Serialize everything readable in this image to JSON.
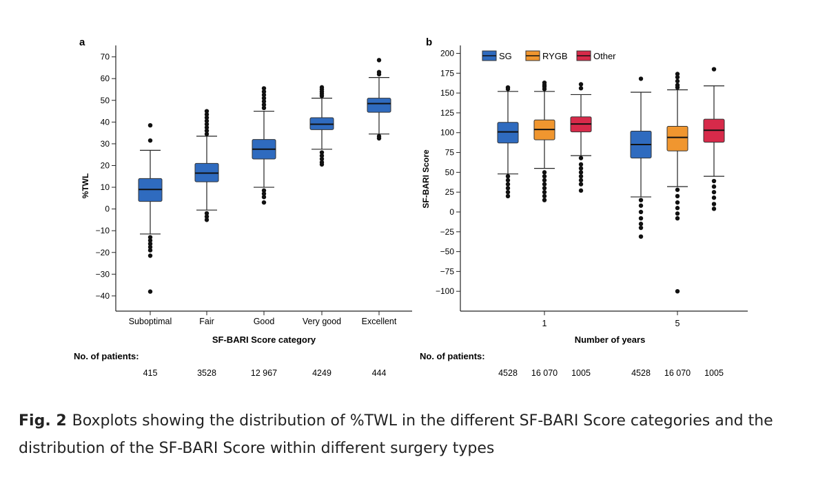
{
  "caption": {
    "label": "Fig. 2",
    "text": "Boxplots showing the distribution of %TWL in the different SF-BARI Score categories and the distribution of the SF-BARI Score within different surgery types"
  },
  "chart_data": [
    {
      "panel": "a",
      "type": "boxplot",
      "xlabel": "SF-BARI Score category",
      "ylabel": "%TWL",
      "ylim": [
        -47,
        74
      ],
      "yticks": [
        70,
        60,
        50,
        40,
        30,
        20,
        10,
        0,
        -10,
        -20,
        -30,
        -40
      ],
      "grid": false,
      "categories": [
        "Suboptimal",
        "Fair",
        "Good",
        "Very good",
        "Excellent"
      ],
      "patients_label": "No. of patients:",
      "patients": [
        "415",
        "3528",
        "12 967",
        "4249",
        "444"
      ],
      "color": "#2f6bbf",
      "boxes": [
        {
          "category": "Suboptimal",
          "whisker_low": -11.5,
          "q1": 3.5,
          "median": 9,
          "q3": 14,
          "whisker_high": 27,
          "outliers": [
            38.5,
            31.5,
            -13,
            -14.5,
            -16,
            -17.5,
            -19,
            -21.5,
            -38
          ]
        },
        {
          "category": "Fair",
          "whisker_low": -0.5,
          "q1": 12.5,
          "median": 16.5,
          "q3": 21,
          "whisker_high": 33.5,
          "outliers": [
            34.5,
            36,
            37.5,
            39,
            40.5,
            42,
            43.5,
            45,
            -2,
            -3.5,
            -5
          ]
        },
        {
          "category": "Good",
          "whisker_low": 10,
          "q1": 23,
          "median": 27.5,
          "q3": 32,
          "whisker_high": 45,
          "outliers": [
            46.5,
            48,
            49.5,
            51,
            52.5,
            54,
            55.5,
            8.5,
            7,
            5.5,
            3
          ]
        },
        {
          "category": "Very good",
          "whisker_low": 27.5,
          "q1": 36.5,
          "median": 39,
          "q3": 42,
          "whisker_high": 51,
          "outliers": [
            52,
            53,
            54,
            55,
            56,
            26,
            24.5,
            23,
            21.5,
            20.5
          ]
        },
        {
          "category": "Excellent",
          "whisker_low": 34.5,
          "q1": 44.5,
          "median": 48.5,
          "q3": 51,
          "whisker_high": 60.5,
          "outliers": [
            62,
            63,
            68.5,
            33.5,
            32.5
          ]
        }
      ]
    },
    {
      "panel": "b",
      "type": "boxplot",
      "xlabel": "Number of years",
      "ylabel": "SF-BARI Score",
      "ylim": [
        -125,
        210
      ],
      "yticks": [
        200,
        175,
        150,
        125,
        100,
        75,
        50,
        25,
        0,
        -25,
        -50,
        -75,
        -100
      ],
      "grid": false,
      "groups": [
        "1",
        "5"
      ],
      "legend": {
        "position": "top-left",
        "entries": [
          {
            "name": "SG",
            "color": "#2f6bbf"
          },
          {
            "name": "RYGB",
            "color": "#f0962f"
          },
          {
            "name": "Other",
            "color": "#d72a4a"
          }
        ]
      },
      "patients_label": "No. of patients:",
      "patients": [
        [
          "4528",
          "16 070",
          "1005"
        ],
        [
          "4528",
          "16 070",
          "1005"
        ]
      ],
      "series": [
        {
          "name": "SG",
          "boxes": [
            {
              "group": "1",
              "whisker_low": 48,
              "q1": 87,
              "median": 101,
              "q3": 113,
              "whisker_high": 152,
              "outliers": [
                155,
                157,
                45,
                40,
                35,
                30,
                25,
                20
              ]
            },
            {
              "group": "5",
              "whisker_low": 19,
              "q1": 68,
              "median": 85,
              "q3": 102,
              "whisker_high": 151,
              "outliers": [
                168,
                15,
                8,
                0,
                -8,
                -15,
                -20,
                -31
              ]
            }
          ]
        },
        {
          "name": "RYGB",
          "boxes": [
            {
              "group": "1",
              "whisker_low": 55,
              "q1": 91,
              "median": 104,
              "q3": 116,
              "whisker_high": 152,
              "outliers": [
                155,
                158,
                160,
                163,
                50,
                45,
                40,
                35,
                30,
                25,
                20,
                15
              ]
            },
            {
              "group": "5",
              "whisker_low": 32,
              "q1": 77,
              "median": 94,
              "q3": 108,
              "whisker_high": 154,
              "outliers": [
                157,
                160,
                165,
                170,
                174,
                28,
                20,
                12,
                5,
                -2,
                -8,
                -100
              ]
            }
          ]
        },
        {
          "name": "Other",
          "boxes": [
            {
              "group": "1",
              "whisker_low": 71,
              "q1": 101,
              "median": 111,
              "q3": 120,
              "whisker_high": 148,
              "outliers": [
                156,
                161,
                68,
                60,
                55,
                50,
                45,
                40,
                35,
                27
              ]
            },
            {
              "group": "5",
              "whisker_low": 45,
              "q1": 88,
              "median": 103,
              "q3": 117,
              "whisker_high": 159,
              "outliers": [
                180,
                39,
                32,
                25,
                18,
                10,
                4
              ]
            }
          ]
        }
      ]
    }
  ]
}
